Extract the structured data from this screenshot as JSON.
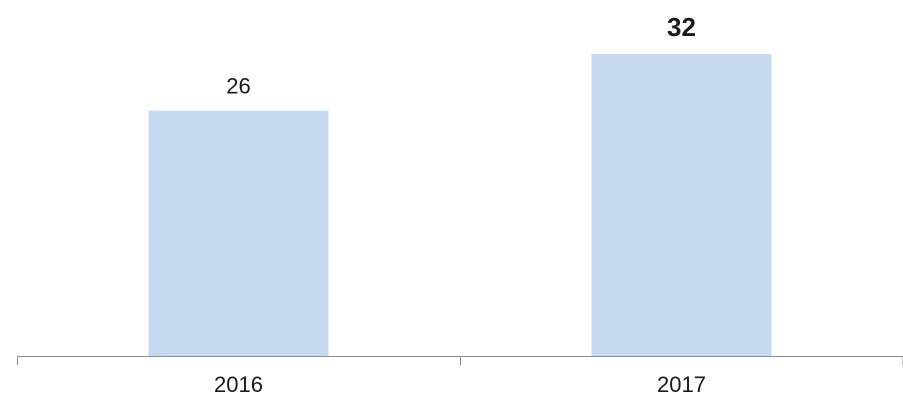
{
  "chart_data": {
    "type": "bar",
    "categories": [
      "2016",
      "2017"
    ],
    "values": [
      26,
      32
    ],
    "data_labels": [
      "26",
      "32"
    ],
    "emphasized_labels": [
      "32"
    ],
    "ylim": [
      0,
      32
    ],
    "grid": false,
    "bar_color": "#c5d9f0",
    "axis_color": "#8c8c8c",
    "text_color": "#1a1a1a"
  }
}
